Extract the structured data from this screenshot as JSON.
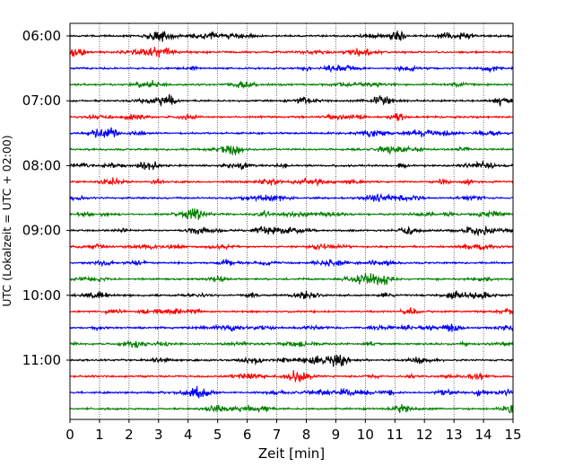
{
  "chart_data": {
    "type": "line",
    "subtype": "helicorder",
    "xlabel": "Zeit  [min]",
    "ylabel": "UTC (Lokalzeit = UTC + 02:00)",
    "xlim": [
      0,
      15
    ],
    "x_ticks": [
      0,
      1,
      2,
      3,
      4,
      5,
      6,
      7,
      8,
      9,
      10,
      11,
      12,
      13,
      14,
      15
    ],
    "y_ticks": [
      "06:00",
      "07:00",
      "08:00",
      "09:00",
      "10:00",
      "11:00"
    ],
    "lines_per_hour": 4,
    "minutes_per_line": 15,
    "start_time": "06:00",
    "end_time": "12:00",
    "grid": "vertical dotted at each minute",
    "trace_colors": [
      "#000000",
      "#ff0000",
      "#0000ff",
      "#008000"
    ]
  }
}
